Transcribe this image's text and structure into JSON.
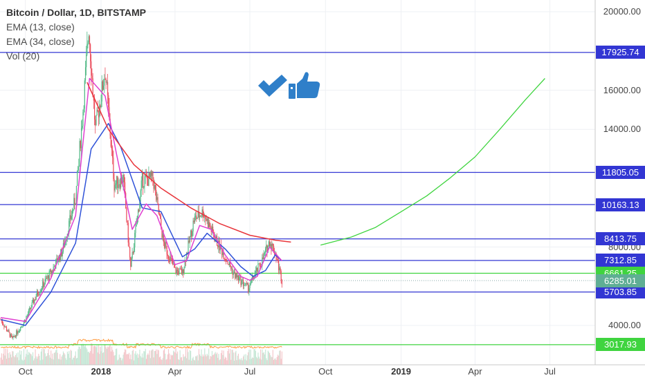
{
  "chart_data": {
    "type": "candlestick",
    "title": "Bitcoin / Dollar, 1D, BITSTAMP",
    "indicators": [
      "EMA (13, close)",
      "EMA (34, close)",
      "Vol (20)"
    ],
    "y_ticks": [
      20000,
      16000,
      14000,
      8000,
      4000
    ],
    "y_tick_labels": [
      "20000.00",
      "16000.00",
      "14000.00",
      "8000.00",
      "4000.00"
    ],
    "x_ticks": [
      "Oct",
      "2018",
      "Apr",
      "Jul",
      "Oct",
      "2019",
      "Apr",
      "Jul"
    ],
    "x_tick_bold": [
      false,
      true,
      false,
      false,
      false,
      true,
      false,
      false
    ],
    "horizontal_levels": [
      {
        "value": 17925.74,
        "label": "17925.74",
        "color": "#3236d3"
      },
      {
        "value": 11805.05,
        "label": "11805.05",
        "color": "#3236d3"
      },
      {
        "value": 10163.13,
        "label": "10163.13",
        "color": "#3236d3"
      },
      {
        "value": 8413.75,
        "label": "8413.75",
        "color": "#3236d3"
      },
      {
        "value": 7312.85,
        "label": "7312.85",
        "color": "#3236d3"
      },
      {
        "value": 6661.25,
        "label": "6661.25",
        "color": "#3fd43f"
      },
      {
        "value": 5703.85,
        "label": "5703.85",
        "color": "#3236d3"
      },
      {
        "value": 3017.93,
        "label": "3017.93",
        "color": "#3fd43f"
      }
    ],
    "last_price": {
      "value": 6285.01,
      "label": "6285.01",
      "color": "#5fae94"
    },
    "price_path": [
      [
        "2017-09-01",
        4300
      ],
      [
        "2017-09-15",
        3300
      ],
      [
        "2017-10-01",
        4300
      ],
      [
        "2017-10-15",
        5600
      ],
      [
        "2017-11-01",
        6700
      ],
      [
        "2017-11-15",
        7800
      ],
      [
        "2017-12-01",
        10500
      ],
      [
        "2017-12-10",
        15000
      ],
      [
        "2017-12-17",
        19200
      ],
      [
        "2017-12-25",
        14000
      ],
      [
        "2018-01-06",
        17000
      ],
      [
        "2018-01-17",
        11200
      ],
      [
        "2018-01-28",
        11500
      ],
      [
        "2018-02-06",
        6900
      ],
      [
        "2018-02-20",
        11400
      ],
      [
        "2018-03-05",
        11500
      ],
      [
        "2018-03-18",
        8200
      ],
      [
        "2018-04-01",
        6800
      ],
      [
        "2018-04-10",
        6700
      ],
      [
        "2018-04-24",
        9400
      ],
      [
        "2018-05-05",
        9800
      ],
      [
        "2018-05-20",
        8400
      ],
      [
        "2018-06-01",
        7500
      ],
      [
        "2018-06-12",
        6600
      ],
      [
        "2018-06-29",
        5900
      ],
      [
        "2018-07-06",
        6500
      ],
      [
        "2018-07-17",
        7400
      ],
      [
        "2018-07-25",
        8300
      ],
      [
        "2018-08-01",
        7700
      ],
      [
        "2018-08-09",
        6300
      ]
    ],
    "ema13_path": [
      [
        "2017-09-01",
        4400
      ],
      [
        "2017-10-01",
        4200
      ],
      [
        "2017-11-01",
        6400
      ],
      [
        "2017-12-01",
        9600
      ],
      [
        "2017-12-18",
        16600
      ],
      [
        "2018-01-06",
        15700
      ],
      [
        "2018-01-20",
        12700
      ],
      [
        "2018-02-08",
        8900
      ],
      [
        "2018-02-25",
        10200
      ],
      [
        "2018-03-10",
        9600
      ],
      [
        "2018-04-01",
        7100
      ],
      [
        "2018-04-15",
        7300
      ],
      [
        "2018-05-01",
        9100
      ],
      [
        "2018-05-15",
        8900
      ],
      [
        "2018-06-01",
        7600
      ],
      [
        "2018-06-20",
        6500
      ],
      [
        "2018-07-01",
        6300
      ],
      [
        "2018-07-10",
        6500
      ],
      [
        "2018-07-25",
        8000
      ],
      [
        "2018-08-09",
        7300
      ]
    ],
    "ema34_path": [
      [
        "2017-09-01",
        4300
      ],
      [
        "2017-10-01",
        4000
      ],
      [
        "2017-11-01",
        5700
      ],
      [
        "2017-12-01",
        8200
      ],
      [
        "2017-12-20",
        13000
      ],
      [
        "2018-01-10",
        14300
      ],
      [
        "2018-01-25",
        13100
      ],
      [
        "2018-02-20",
        10000
      ],
      [
        "2018-03-15",
        9800
      ],
      [
        "2018-04-10",
        7500
      ],
      [
        "2018-04-25",
        7900
      ],
      [
        "2018-05-10",
        8700
      ],
      [
        "2018-06-01",
        7900
      ],
      [
        "2018-06-20",
        7000
      ],
      [
        "2018-07-05",
        6500
      ],
      [
        "2018-07-20",
        6800
      ],
      [
        "2018-08-01",
        7600
      ],
      [
        "2018-08-09",
        7300
      ]
    ],
    "red_curve": [
      [
        "2017-12-15",
        16400
      ],
      [
        "2018-01-10",
        14000
      ],
      [
        "2018-02-10",
        12200
      ],
      [
        "2018-03-15",
        11000
      ],
      [
        "2018-04-20",
        10000
      ],
      [
        "2018-05-25",
        9200
      ],
      [
        "2018-07-01",
        8600
      ],
      [
        "2018-08-01",
        8350
      ],
      [
        "2018-08-20",
        8250
      ]
    ],
    "green_curve": [
      [
        "2018-09-25",
        8100
      ],
      [
        "2018-11-01",
        8500
      ],
      [
        "2018-12-01",
        9000
      ],
      [
        "2019-01-01",
        9800
      ],
      [
        "2019-02-01",
        10600
      ],
      [
        "2019-03-01",
        11500
      ],
      [
        "2019-04-01",
        12600
      ],
      [
        "2019-05-01",
        14000
      ],
      [
        "2019-06-01",
        15500
      ],
      [
        "2019-06-25",
        16600
      ]
    ]
  },
  "icons": {
    "check": "check-icon",
    "thumbs_up": "thumbs-up-icon",
    "color": "#2f7fc9"
  }
}
